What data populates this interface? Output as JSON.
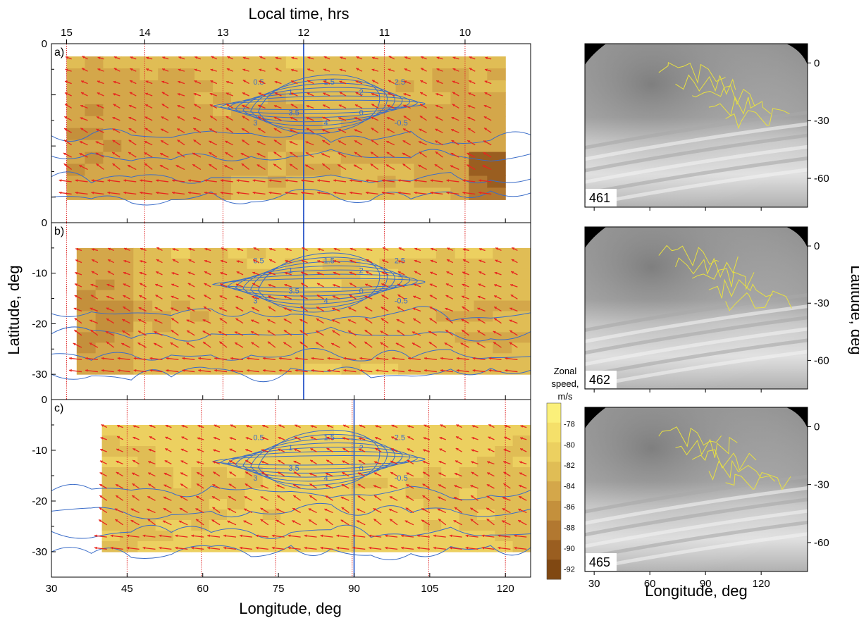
{
  "figure": {
    "top_axis_title": "Local time, hrs",
    "left_axis_title": "Latitude, deg",
    "bottom_axis_title": "Longitude, deg",
    "right_axis_title": "Latitude, deg",
    "right_bottom_axis_title": "Longitude, deg",
    "colorbar_title_1": "Zonal",
    "colorbar_title_2": "speed,",
    "colorbar_title_3": "m/s"
  },
  "chart_data": {
    "type": "heatmap",
    "description_panels": [
      "a)",
      "b)",
      "c)"
    ],
    "xlabel": "Longitude, deg",
    "ylabel": "Latitude, deg",
    "x2label": "Local time, hrs",
    "xlim": [
      30,
      125
    ],
    "ylim": [
      -35,
      0
    ],
    "x_ticks": [
      30,
      45,
      60,
      75,
      90,
      105,
      120
    ],
    "y_ticks_left": [
      -30,
      -20,
      -10,
      0
    ],
    "local_time_ticks": [
      {
        "label": "15",
        "lon": 33
      },
      {
        "label": "14",
        "lon": 48.5
      },
      {
        "label": "13",
        "lon": 64
      },
      {
        "label": "12",
        "lon": 80
      },
      {
        "label": "11",
        "lon": 96
      },
      {
        "label": "10",
        "lon": 112
      }
    ],
    "panel_subsolar_lon": [
      80,
      80,
      90
    ],
    "colorbar": {
      "label": "Zonal speed, m/s",
      "ticks": [
        -78,
        -80,
        -82,
        -84,
        -86,
        -88,
        -90,
        -92
      ],
      "range": [
        -93,
        -76
      ],
      "colors": [
        "#fbf07a",
        "#f5e06a",
        "#ecd060",
        "#e0bd55",
        "#d4a74a",
        "#c4903c",
        "#b27830",
        "#9a5e20",
        "#804812"
      ]
    },
    "contour_labels": [
      "0.5",
      "1",
      "1.5",
      "2",
      "2.5",
      "3",
      "3.5",
      "4",
      "0",
      "-0.5"
    ],
    "image_panels": [
      {
        "label": "461",
        "lon_ticks": [
          30,
          60,
          90,
          120
        ],
        "lat_ticks": [
          0,
          -30,
          -60
        ]
      },
      {
        "label": "462",
        "lon_ticks": [
          30,
          60,
          90,
          120
        ],
        "lat_ticks": [
          0,
          -30,
          -60
        ]
      },
      {
        "label": "465",
        "lon_ticks": [
          30,
          60,
          90,
          120
        ],
        "lat_ticks": [
          0,
          -30,
          -60
        ]
      }
    ],
    "image_xlabel": "Longitude, deg",
    "image_ylabel": "Latitude, deg"
  }
}
